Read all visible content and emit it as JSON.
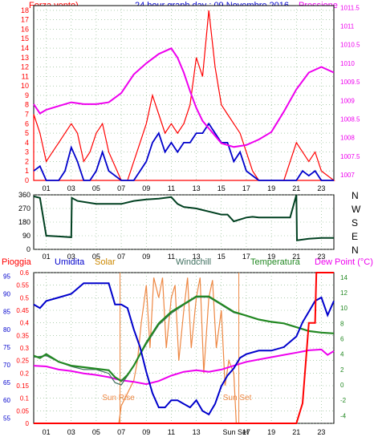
{
  "chart_data": [
    {
      "type": "line",
      "title": "24 hour graph day : 09 Novembre 2016",
      "left_axis_label": "Forza vento)",
      "right_axis_label": "Pressione",
      "x_tick_labels": [
        "01",
        "03",
        "05",
        "07",
        "09",
        "11",
        "13",
        "15",
        "17",
        "19",
        "21",
        "23"
      ],
      "y_left_ticks": [
        0,
        1,
        2,
        3,
        4,
        5,
        6,
        7,
        8,
        9,
        10,
        11,
        12,
        13,
        14,
        15,
        16,
        17,
        18
      ],
      "y_right_ticks": [
        "1007",
        "1007.5",
        "1008",
        "1008.5",
        "1009",
        "1009.5",
        "1010",
        "1010.5",
        "1011",
        "1011.5"
      ],
      "ylim_left": [
        0,
        18.5
      ],
      "ylim_right": [
        1006.85,
        1011.55
      ],
      "colors": {
        "gust": "#ff0000",
        "speed": "#0000cc",
        "pressure": "#ee00ee",
        "grid": "#7fb07f"
      },
      "series": [
        {
          "role": "pressure",
          "x": [
            0,
            0.5,
            1,
            2,
            3,
            4,
            5,
            6,
            7,
            8,
            9,
            10,
            11,
            11.5,
            12,
            12.5,
            13,
            13.5,
            14,
            14.5,
            15,
            16,
            17,
            18,
            19,
            20,
            21,
            22,
            23,
            24
          ],
          "values": [
            1008.9,
            1008.65,
            1008.75,
            1008.85,
            1008.95,
            1008.9,
            1008.9,
            1008.95,
            1009.2,
            1009.7,
            1010.0,
            1010.25,
            1010.4,
            1010.15,
            1009.75,
            1009.25,
            1008.8,
            1008.45,
            1008.25,
            1008.05,
            1007.85,
            1007.75,
            1007.8,
            1007.95,
            1008.15,
            1008.7,
            1009.3,
            1009.75,
            1009.9,
            1009.75
          ]
        },
        {
          "role": "speed",
          "x": [
            0,
            0.5,
            1,
            2,
            2.5,
            3,
            3.5,
            4,
            4.5,
            5,
            5.5,
            6,
            7,
            7.5,
            8,
            8.5,
            9,
            9.5,
            10,
            10.5,
            11,
            11.5,
            12,
            12.5,
            13,
            13.5,
            14,
            14.5,
            15,
            15.5,
            16,
            16.5,
            17,
            17.5,
            18,
            19,
            20,
            21,
            21.5,
            22,
            22.5,
            23,
            24
          ],
          "values": [
            1,
            1.5,
            0,
            0,
            1,
            3.5,
            2,
            0,
            0,
            1,
            3,
            1,
            0,
            0,
            0,
            1,
            2,
            4,
            5,
            3,
            4,
            3,
            4,
            4,
            5,
            5,
            6,
            5,
            4,
            4,
            2,
            3,
            1,
            0.5,
            0,
            0,
            0,
            0,
            1,
            0.5,
            1,
            0,
            0
          ]
        },
        {
          "role": "gust",
          "x": [
            0,
            0.5,
            1,
            1.5,
            2,
            2.5,
            3,
            3.5,
            4,
            4.5,
            5,
            5.5,
            6,
            7,
            7.5,
            8,
            8.5,
            9,
            9.5,
            10,
            10.5,
            11,
            11.5,
            12,
            12.5,
            13,
            13.5,
            14,
            14.5,
            15,
            15.5,
            16,
            16.5,
            17,
            17.5,
            18,
            19,
            20,
            20.5,
            21,
            21.5,
            22,
            22.5,
            23,
            24
          ],
          "values": [
            7,
            5,
            2,
            3,
            4,
            5,
            6,
            5,
            2,
            3,
            5,
            6,
            3,
            0,
            0,
            2,
            4,
            6,
            9,
            7,
            5,
            6,
            5,
            6,
            8,
            13,
            11,
            18,
            12,
            8,
            7,
            6,
            5,
            3,
            1,
            0,
            0,
            0,
            2,
            4,
            3,
            2,
            3,
            1,
            0
          ]
        }
      ]
    },
    {
      "type": "line",
      "title": "",
      "right_axis_labels": [
        "N",
        "W",
        "S",
        "E",
        "N"
      ],
      "y_ticks": [
        0,
        90,
        180,
        270,
        360
      ],
      "ylim": [
        0,
        360
      ],
      "x_tick_labels": [
        "01",
        "03",
        "05",
        "07",
        "09",
        "11",
        "13",
        "15",
        "17",
        "19",
        "21",
        "23"
      ],
      "colors": {
        "line": "#004020",
        "grid": "#7fb07f"
      },
      "series": [
        {
          "role": "direction",
          "x": [
            0,
            0.5,
            1,
            2,
            3,
            3.05,
            3.5,
            5,
            7,
            8,
            9,
            10,
            11,
            11.5,
            12,
            13,
            14,
            15,
            15.5,
            16,
            17,
            17.5,
            18,
            19,
            20,
            20.5,
            21,
            21.05,
            22,
            23,
            24
          ],
          "values": [
            350,
            340,
            90,
            85,
            80,
            340,
            320,
            300,
            300,
            320,
            330,
            335,
            345,
            300,
            280,
            270,
            250,
            230,
            230,
            185,
            210,
            215,
            210,
            210,
            210,
            210,
            360,
            60,
            70,
            75,
            75
          ]
        }
      ]
    },
    {
      "type": "line",
      "title": "",
      "axis_labels": {
        "rain": "Pioggia",
        "humidity": "Umidita",
        "solar": "Solar",
        "windchill": "Windchill",
        "temperature": "Temperatura",
        "dewpoint": "Dew Point (°C)"
      },
      "annotations": {
        "sunrise": "Sun Rise",
        "sunset": "Sun Set",
        "sunset_tick": "Sun Set"
      },
      "x_tick_labels": [
        "01",
        "03",
        "05",
        "07",
        "09",
        "11",
        "13",
        "",
        "17",
        "19",
        "21",
        "23"
      ],
      "y_rain_ticks": [
        "0",
        "0.05",
        "0.1",
        "0.15",
        "0.2",
        "0.25",
        "0.3",
        "0.35",
        "0.4",
        "0.45",
        "0.5",
        "0.55",
        "0.6"
      ],
      "y_humidity_ticks": [
        "55",
        "60",
        "65",
        "70",
        "75",
        "80",
        "85",
        "90",
        "95"
      ],
      "y_temp_ticks": [
        "-4",
        "-2",
        "0",
        "2",
        "4",
        "6",
        "8",
        "10",
        "12",
        "14"
      ],
      "ylim_rain": [
        0,
        0.6
      ],
      "ylim_humidity": [
        53.5,
        96
      ],
      "ylim_temperature": [
        -5,
        14.6
      ],
      "colors": {
        "rain": "#ff0000",
        "humidity": "#0000cc",
        "solar": "#ee8844",
        "windchill": "#407060",
        "temperature": "#228822",
        "dewpoint": "#ee00ee",
        "sun_markers": "#ee8844",
        "grid": "#7fb07f"
      },
      "series": [
        {
          "role": "humidity",
          "x": [
            0,
            0.5,
            1,
            2,
            3,
            4,
            5,
            6,
            6.5,
            7,
            7.5,
            8,
            8.5,
            9,
            9.5,
            10,
            10.5,
            11,
            11.5,
            12,
            12.5,
            13,
            13.5,
            14,
            14.5,
            15,
            15.5,
            16,
            16.5,
            17,
            18,
            19,
            20,
            21,
            21.5,
            22,
            22.5,
            23,
            23.5,
            24
          ],
          "values": [
            87,
            86,
            88,
            89,
            90,
            93,
            93,
            93,
            87,
            87,
            86,
            80,
            75,
            68,
            62,
            58,
            58,
            60,
            60,
            59,
            58,
            60,
            57,
            56,
            59,
            64,
            67,
            69,
            72,
            73,
            74,
            74,
            75,
            78,
            82,
            85,
            88,
            89,
            84,
            88
          ]
        },
        {
          "role": "temperature",
          "x": [
            0,
            0.5,
            1,
            2,
            3,
            4,
            5,
            6,
            6.5,
            7,
            7.5,
            8,
            9,
            10,
            11,
            12,
            13,
            14,
            15,
            16,
            17,
            18,
            19,
            20,
            21,
            22,
            23,
            24
          ],
          "values": [
            3.8,
            3.5,
            4.0,
            3.0,
            2.5,
            2.3,
            2.1,
            1.9,
            1.0,
            0.5,
            1.3,
            2.5,
            5.5,
            8.0,
            9.5,
            10.5,
            11.5,
            11.5,
            10.5,
            9.5,
            9.0,
            8.5,
            8.2,
            8.0,
            7.5,
            7.0,
            6.8,
            6.7
          ]
        },
        {
          "role": "windchill",
          "x": [
            0,
            1,
            2,
            3,
            4,
            5,
            6,
            6.5,
            7,
            7.5,
            8,
            9,
            10,
            11,
            12,
            13,
            14,
            15,
            16,
            17,
            18,
            19,
            20,
            21,
            22,
            23,
            24
          ],
          "values": [
            3.6,
            3.8,
            3.0,
            2.4,
            2.0,
            2.0,
            1.5,
            0.3,
            0,
            1.2,
            2.5,
            5.3,
            7.8,
            9.3,
            10.4,
            11.4,
            11.4,
            10.4,
            9.4,
            9.0,
            8.5,
            8.2,
            8.0,
            7.5,
            7.0,
            6.8,
            6.7
          ]
        },
        {
          "role": "dewpoint",
          "x": [
            0,
            1,
            2,
            3,
            4,
            5,
            6,
            6.5,
            7,
            8,
            9,
            10,
            11,
            12,
            13,
            14,
            15,
            16,
            17,
            18,
            19,
            20,
            21,
            22,
            23,
            23.5,
            24
          ],
          "values": [
            2.5,
            2.4,
            2.0,
            1.8,
            1.5,
            1.3,
            1.0,
            0.8,
            0.6,
            0.4,
            0.1,
            0.5,
            1.2,
            1.7,
            1.9,
            1.7,
            2.0,
            2.5,
            3.0,
            3.3,
            3.6,
            3.9,
            4.2,
            4.5,
            4.6,
            3.9,
            4.4
          ]
        },
        {
          "role": "solar",
          "x": [
            6.8,
            7,
            7.3,
            7.6,
            8,
            8.3,
            8.6,
            9,
            9.3,
            9.6,
            10,
            10.3,
            10.6,
            11,
            11.3,
            11.6,
            12,
            12.3,
            12.6,
            13,
            13.3,
            13.6,
            14,
            14.3,
            14.6,
            15,
            15.3,
            15.6,
            16,
            16.2
          ],
          "values": [
            0,
            0.07,
            0.1,
            0.13,
            0.17,
            0.25,
            0.4,
            0.55,
            0.3,
            0.58,
            0.5,
            0.58,
            0.3,
            0.5,
            0.55,
            0.25,
            0.45,
            0.58,
            0.3,
            0.5,
            0.58,
            0.2,
            0.5,
            0.57,
            0.3,
            0.45,
            0.15,
            0.25,
            0.2,
            0
          ]
        },
        {
          "role": "rain",
          "x": [
            0,
            21,
            21.5,
            22,
            22.5,
            22.6,
            23,
            24
          ],
          "values": [
            0,
            0,
            0.08,
            0.4,
            0.4,
            0.6,
            0.6,
            0.6
          ]
        }
      ],
      "sunrise_hour": 6.9,
      "sunset_hour": 16.4
    }
  ]
}
